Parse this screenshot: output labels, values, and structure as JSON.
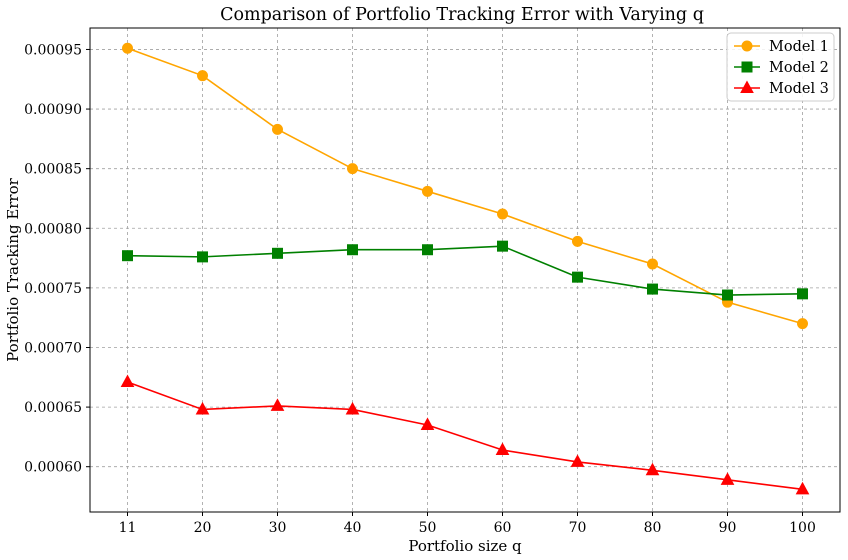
{
  "chart_data": {
    "type": "line",
    "title": "Comparison of Portfolio Tracking Error with Varying q",
    "xlabel": "Portfolio size q",
    "ylabel": "Portfolio Tracking Error",
    "categories": [
      "11",
      "20",
      "30",
      "40",
      "50",
      "60",
      "70",
      "80",
      "90",
      "100"
    ],
    "ylim": [
      0.000562,
      0.000968
    ],
    "yticks": [
      "0.00060",
      "0.00065",
      "0.00070",
      "0.00075",
      "0.00080",
      "0.00085",
      "0.00090",
      "0.00095"
    ],
    "ytick_values": [
      0.0006,
      0.00065,
      0.0007,
      0.00075,
      0.0008,
      0.00085,
      0.0009,
      0.00095
    ],
    "grid": true,
    "legend_position": "top-right",
    "series": [
      {
        "name": "Model 1",
        "color": "#ffa500",
        "marker": "circle",
        "values": [
          0.000951,
          0.000928,
          0.000883,
          0.00085,
          0.000831,
          0.000812,
          0.000789,
          0.00077,
          0.000738,
          0.00072
        ]
      },
      {
        "name": "Model 2",
        "color": "#008000",
        "marker": "square",
        "values": [
          0.000777,
          0.000776,
          0.000779,
          0.000782,
          0.000782,
          0.000785,
          0.000759,
          0.000749,
          0.000744,
          0.000745
        ]
      },
      {
        "name": "Model 3",
        "color": "#ff0000",
        "marker": "triangle",
        "values": [
          0.000671,
          0.000648,
          0.000651,
          0.000648,
          0.000635,
          0.000614,
          0.000604,
          0.000597,
          0.000589,
          0.000581
        ]
      }
    ]
  }
}
